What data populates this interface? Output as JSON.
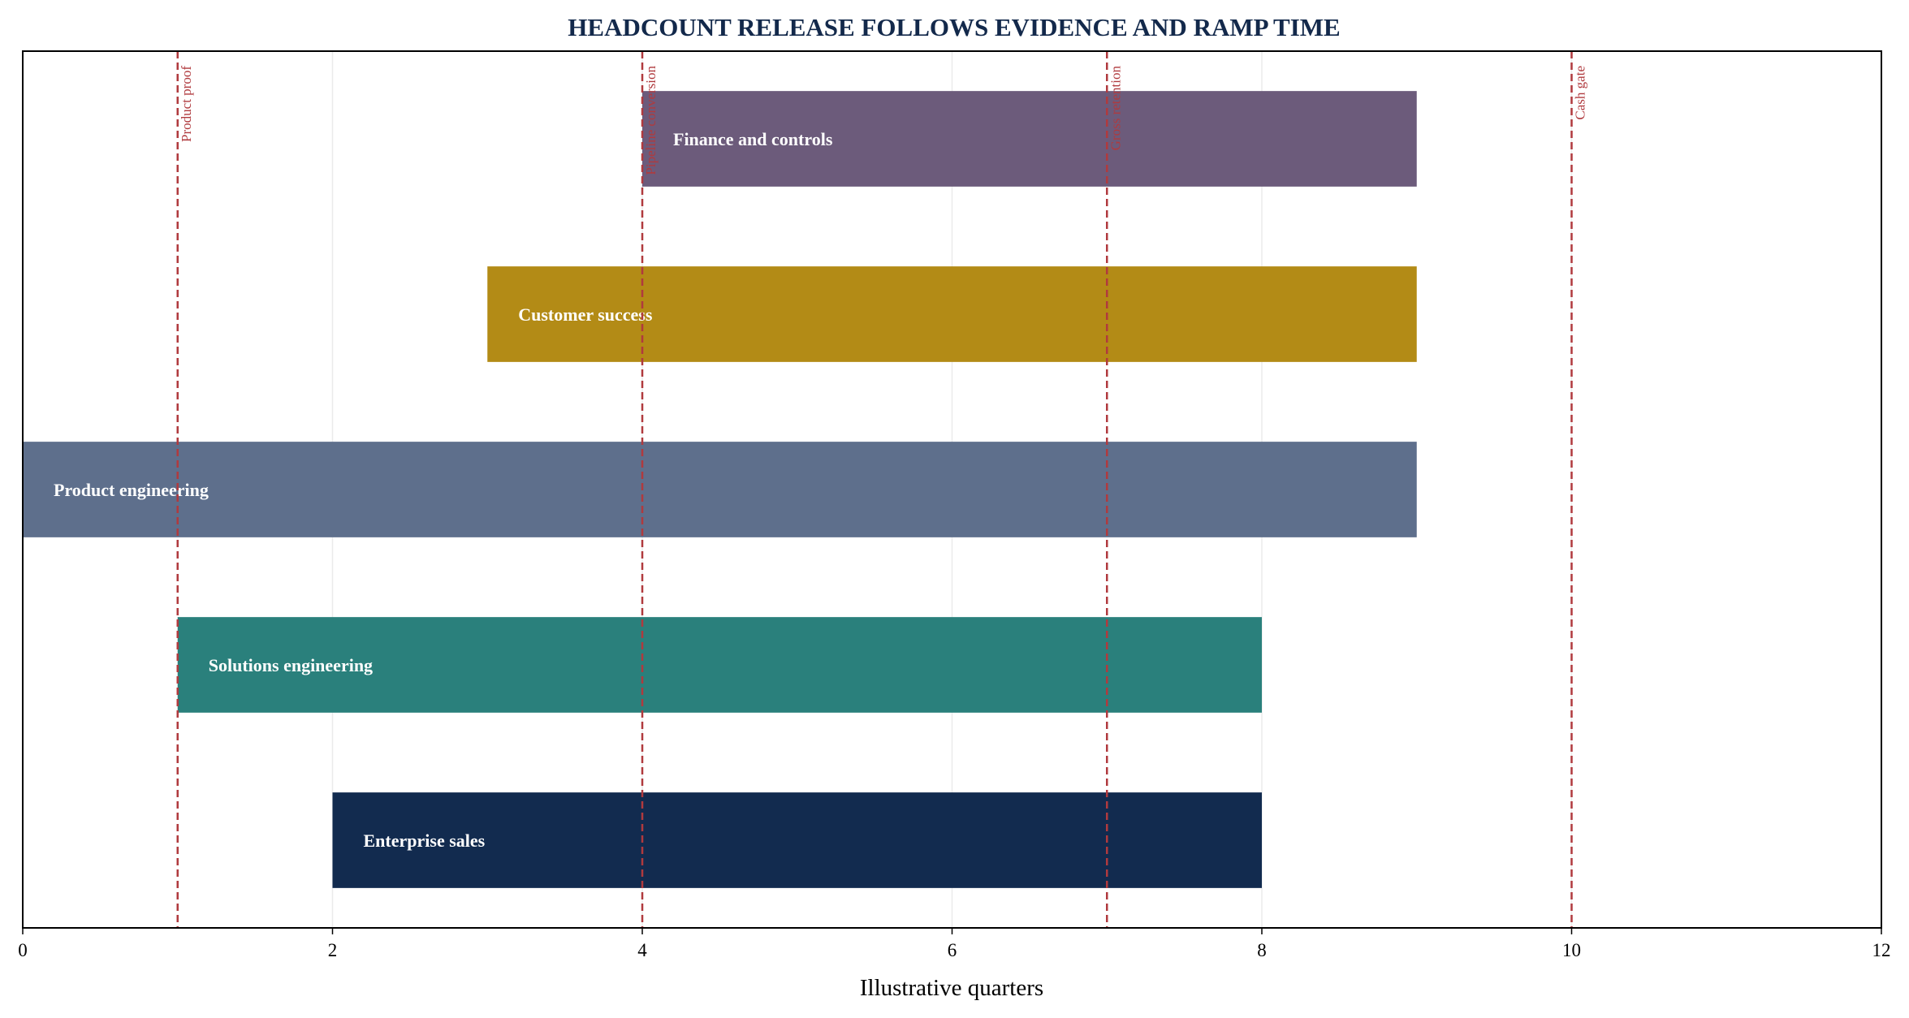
{
  "chart_data": {
    "type": "bar",
    "orientation": "horizontal-range",
    "title": "HEADCOUNT RELEASE FOLLOWS EVIDENCE AND RAMP TIME",
    "xlabel": "Illustrative quarters",
    "ylabel": "",
    "xlim": [
      0,
      12
    ],
    "xticks": [
      0,
      2,
      4,
      6,
      8,
      10,
      12
    ],
    "grid": "vertical",
    "bars": [
      {
        "label": "Finance and controls",
        "start": 4,
        "end": 9,
        "color": "#6c5b7b"
      },
      {
        "label": "Customer success",
        "start": 3,
        "end": 9,
        "color": "#b38b16"
      },
      {
        "label": "Product engineering",
        "start": 0,
        "end": 9,
        "color": "#5e6f8c"
      },
      {
        "label": "Solutions engineering",
        "start": 1,
        "end": 8,
        "color": "#2a807c"
      },
      {
        "label": "Enterprise sales",
        "start": 2,
        "end": 8,
        "color": "#122b4f"
      }
    ],
    "milestones": [
      {
        "x": 1,
        "label": "Product proof"
      },
      {
        "x": 4,
        "label": "Pipeline conversion"
      },
      {
        "x": 7,
        "label": "Gross retention"
      },
      {
        "x": 10,
        "label": "Cash gate"
      }
    ],
    "milestone_color": "#b03a3e"
  }
}
